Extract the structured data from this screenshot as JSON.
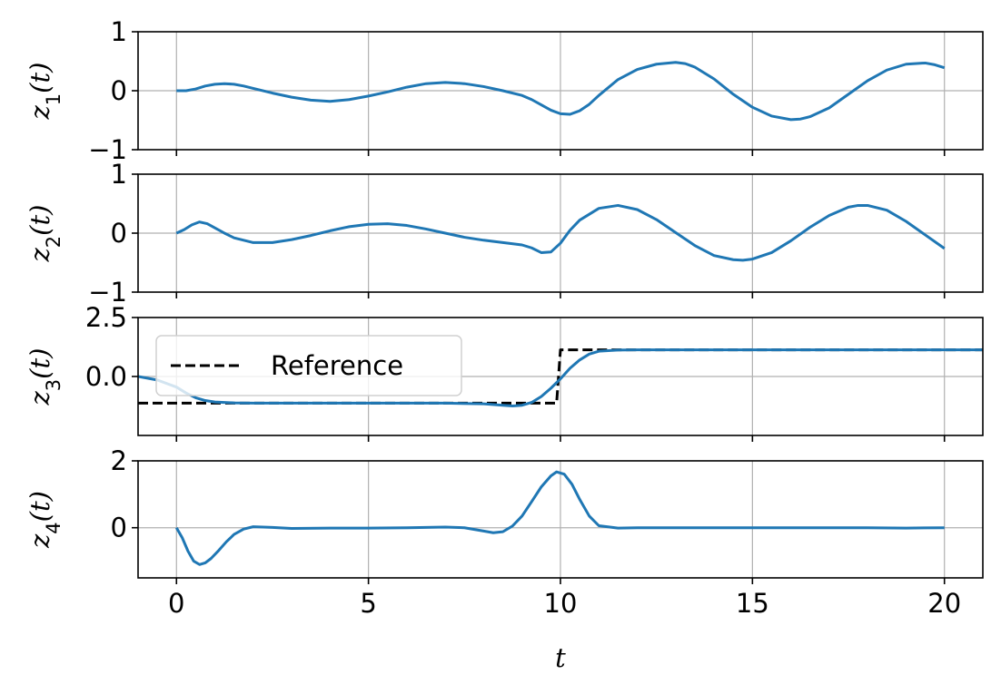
{
  "chart_data": [
    {
      "type": "line",
      "id": "z1",
      "ylabel": "z_1(t)",
      "xlim": [
        -1,
        21
      ],
      "ylim": [
        -1,
        1
      ],
      "yticks": [
        -1,
        0,
        1
      ],
      "ytick_labels": [
        "−1",
        "0",
        "1"
      ],
      "xticks": [
        0,
        5,
        10,
        15,
        20
      ],
      "xtick_labels_visible": false,
      "grid": true,
      "series": [
        {
          "color": "#1f77b4",
          "style": "solid",
          "x": [
            0,
            0.25,
            0.5,
            0.75,
            1,
            1.25,
            1.5,
            1.75,
            2,
            2.5,
            3,
            3.5,
            4,
            4.5,
            5,
            5.5,
            6,
            6.5,
            7,
            7.5,
            8,
            8.5,
            9,
            9.25,
            9.5,
            9.75,
            10,
            10.25,
            10.5,
            10.75,
            11,
            11.5,
            12,
            12.5,
            13,
            13.25,
            13.5,
            14,
            14.5,
            15,
            15.5,
            16,
            16.25,
            16.5,
            17,
            17.5,
            18,
            18.5,
            19,
            19.5,
            19.75,
            20
          ],
          "y": [
            0.0,
            0.0,
            0.03,
            0.08,
            0.11,
            0.12,
            0.11,
            0.08,
            0.04,
            -0.04,
            -0.11,
            -0.16,
            -0.18,
            -0.15,
            -0.09,
            -0.02,
            0.06,
            0.12,
            0.14,
            0.12,
            0.07,
            0.0,
            -0.08,
            -0.15,
            -0.24,
            -0.33,
            -0.39,
            -0.4,
            -0.34,
            -0.23,
            -0.08,
            0.19,
            0.36,
            0.45,
            0.48,
            0.46,
            0.4,
            0.2,
            -0.06,
            -0.28,
            -0.43,
            -0.49,
            -0.48,
            -0.44,
            -0.29,
            -0.06,
            0.17,
            0.35,
            0.45,
            0.47,
            0.44,
            0.39
          ]
        }
      ]
    },
    {
      "type": "line",
      "id": "z2",
      "ylabel": "z_2(t)",
      "xlim": [
        -1,
        21
      ],
      "ylim": [
        -1,
        1
      ],
      "yticks": [
        -1,
        0,
        1
      ],
      "ytick_labels": [
        "−1",
        "0",
        "1"
      ],
      "xticks": [
        0,
        5,
        10,
        15,
        20
      ],
      "xtick_labels_visible": false,
      "grid": true,
      "series": [
        {
          "color": "#1f77b4",
          "style": "solid",
          "x": [
            0,
            0.2,
            0.4,
            0.6,
            0.8,
            1,
            1.25,
            1.5,
            2,
            2.5,
            3,
            3.5,
            4,
            4.5,
            5,
            5.5,
            6,
            6.5,
            7,
            7.5,
            8,
            8.5,
            9,
            9.25,
            9.5,
            9.75,
            10,
            10.25,
            10.5,
            11,
            11.5,
            12,
            12.5,
            13,
            13.5,
            14,
            14.5,
            14.75,
            15,
            15.5,
            16,
            16.5,
            17,
            17.5,
            17.75,
            18,
            18.5,
            19,
            19.5,
            20
          ],
          "y": [
            0.0,
            0.06,
            0.14,
            0.19,
            0.16,
            0.09,
            0.0,
            -0.08,
            -0.16,
            -0.16,
            -0.11,
            -0.04,
            0.04,
            0.11,
            0.15,
            0.16,
            0.13,
            0.07,
            0.0,
            -0.07,
            -0.12,
            -0.16,
            -0.2,
            -0.25,
            -0.33,
            -0.32,
            -0.17,
            0.05,
            0.22,
            0.42,
            0.47,
            0.4,
            0.23,
            0.01,
            -0.21,
            -0.38,
            -0.45,
            -0.46,
            -0.44,
            -0.33,
            -0.13,
            0.1,
            0.3,
            0.44,
            0.47,
            0.47,
            0.39,
            0.2,
            -0.03,
            -0.26
          ]
        }
      ]
    },
    {
      "type": "line",
      "id": "z3",
      "ylabel": "z_3(t)",
      "xlim": [
        -1,
        21
      ],
      "ylim": [
        -2.5,
        2.5
      ],
      "yticks": [
        0,
        2.5
      ],
      "ytick_labels": [
        "0.0",
        "2.5"
      ],
      "xticks": [
        0,
        5,
        10,
        15,
        20
      ],
      "xtick_labels_visible": false,
      "grid": true,
      "legend": {
        "position": "upper-left",
        "entries": [
          "Reference"
        ]
      },
      "series": [
        {
          "name": "Reference",
          "color": "#000000",
          "style": "dashed",
          "x": [
            -1,
            9.9,
            10.0,
            21
          ],
          "y": [
            -1.13,
            -1.13,
            1.13,
            1.13
          ]
        },
        {
          "color": "#1f77b4",
          "style": "solid",
          "x": [
            -1,
            -0.5,
            0,
            0.25,
            0.5,
            0.75,
            1,
            1.5,
            2,
            3,
            4,
            5,
            6,
            7,
            8,
            8.5,
            8.75,
            9,
            9.25,
            9.5,
            9.75,
            10,
            10.25,
            10.5,
            10.75,
            11,
            11.5,
            12,
            13,
            14,
            15,
            16,
            17,
            18,
            19,
            20,
            21
          ],
          "y": [
            0.0,
            -0.15,
            -0.45,
            -0.7,
            -0.9,
            -1.02,
            -1.08,
            -1.12,
            -1.13,
            -1.13,
            -1.13,
            -1.13,
            -1.13,
            -1.13,
            -1.16,
            -1.22,
            -1.25,
            -1.22,
            -1.1,
            -0.85,
            -0.5,
            -0.1,
            0.35,
            0.7,
            0.95,
            1.07,
            1.12,
            1.13,
            1.13,
            1.13,
            1.13,
            1.13,
            1.13,
            1.13,
            1.13,
            1.13,
            1.13
          ]
        }
      ]
    },
    {
      "type": "line",
      "id": "z4",
      "ylabel": "z_4(t)",
      "xlabel": "t",
      "xlim": [
        -1,
        21
      ],
      "ylim": [
        -1.5,
        2
      ],
      "yticks": [
        0,
        2
      ],
      "ytick_labels": [
        "0",
        "2"
      ],
      "xticks": [
        0,
        5,
        10,
        15,
        20
      ],
      "xtick_labels": [
        "0",
        "5",
        "10",
        "15",
        "20"
      ],
      "xtick_labels_visible": true,
      "grid": true,
      "series": [
        {
          "color": "#1f77b4",
          "style": "solid",
          "x": [
            0,
            0.15,
            0.3,
            0.45,
            0.6,
            0.75,
            0.9,
            1.1,
            1.3,
            1.5,
            1.75,
            2,
            2.5,
            3,
            4,
            5,
            6,
            7,
            7.5,
            8,
            8.25,
            8.5,
            8.75,
            9,
            9.25,
            9.5,
            9.75,
            9.9,
            10.1,
            10.3,
            10.5,
            10.75,
            11,
            11.5,
            12,
            13,
            14,
            15,
            16,
            17,
            18,
            19,
            20
          ],
          "y": [
            0.0,
            -0.3,
            -0.7,
            -1.0,
            -1.1,
            -1.05,
            -0.92,
            -0.68,
            -0.42,
            -0.2,
            -0.04,
            0.03,
            0.01,
            -0.02,
            -0.01,
            -0.01,
            0.0,
            0.02,
            0.0,
            -0.1,
            -0.15,
            -0.12,
            0.05,
            0.35,
            0.78,
            1.22,
            1.55,
            1.67,
            1.6,
            1.3,
            0.85,
            0.35,
            0.06,
            -0.01,
            0.0,
            0.0,
            0.0,
            0.0,
            0.0,
            0.0,
            0.0,
            -0.01,
            0.0
          ]
        }
      ]
    }
  ]
}
